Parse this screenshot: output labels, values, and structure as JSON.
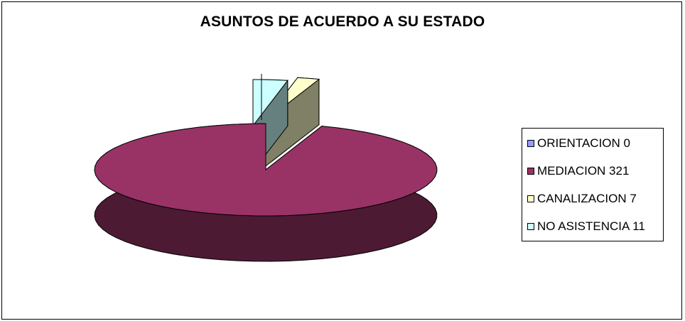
{
  "chart_data": {
    "type": "pie",
    "title": "ASUNTOS DE ACUERDO A SU ESTADO",
    "categories": [
      "ORIENTACION",
      "MEDIACION",
      "CANALIZACION",
      "NO ASISTENCIA"
    ],
    "values": [
      0,
      321,
      7,
      11
    ],
    "colors": [
      "#9999ff",
      "#993366",
      "#ffffcc",
      "#ccffff"
    ],
    "side_colors": [
      "#4c4c80",
      "#4d1a33",
      "#808066",
      "#668080"
    ],
    "legend_placement": "right",
    "legend": [
      {
        "label": "ORIENTACION 0",
        "color": "#9999ff"
      },
      {
        "label": "MEDIACION 321",
        "color": "#993366"
      },
      {
        "label": "CANALIZACION  7",
        "color": "#ffffcc"
      },
      {
        "label": "NO ASISTENCIA 11",
        "color": "#ccffff"
      }
    ],
    "exploded": true,
    "three_d": true
  }
}
